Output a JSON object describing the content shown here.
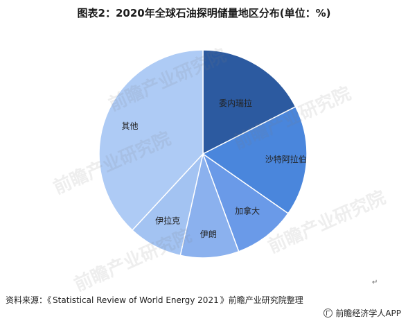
{
  "chart_data": {
    "type": "pie",
    "title": "图表2：2020年全球石油探明储量地区分布(单位：%)",
    "categories": [
      "委内瑞拉",
      "沙特阿拉伯",
      "加拿大",
      "伊朗",
      "伊拉克",
      "其他"
    ],
    "values": [
      17.5,
      17.2,
      9.7,
      9.1,
      8.4,
      38.1
    ],
    "colors": [
      "#2c5aa0",
      "#4a86dc",
      "#6a9ae8",
      "#8bb1ee",
      "#a3c3f2",
      "#aecbf5"
    ],
    "legend": "none"
  },
  "source": {
    "prefix": "资料来源：",
    "open_quote": "《",
    "title": "Statistical Review of World Energy 2021",
    "close_quote": "》",
    "suffix": "前瞻产业研究院整理"
  },
  "watermark": {
    "text": "前瞻产业研究院",
    "logo_icon": "qianzhan-logo-icon"
  },
  "footer": {
    "brand": "前瞻经济学人APP",
    "logo_icon": "qianzhan-logo-icon"
  },
  "return_mark": "↵"
}
